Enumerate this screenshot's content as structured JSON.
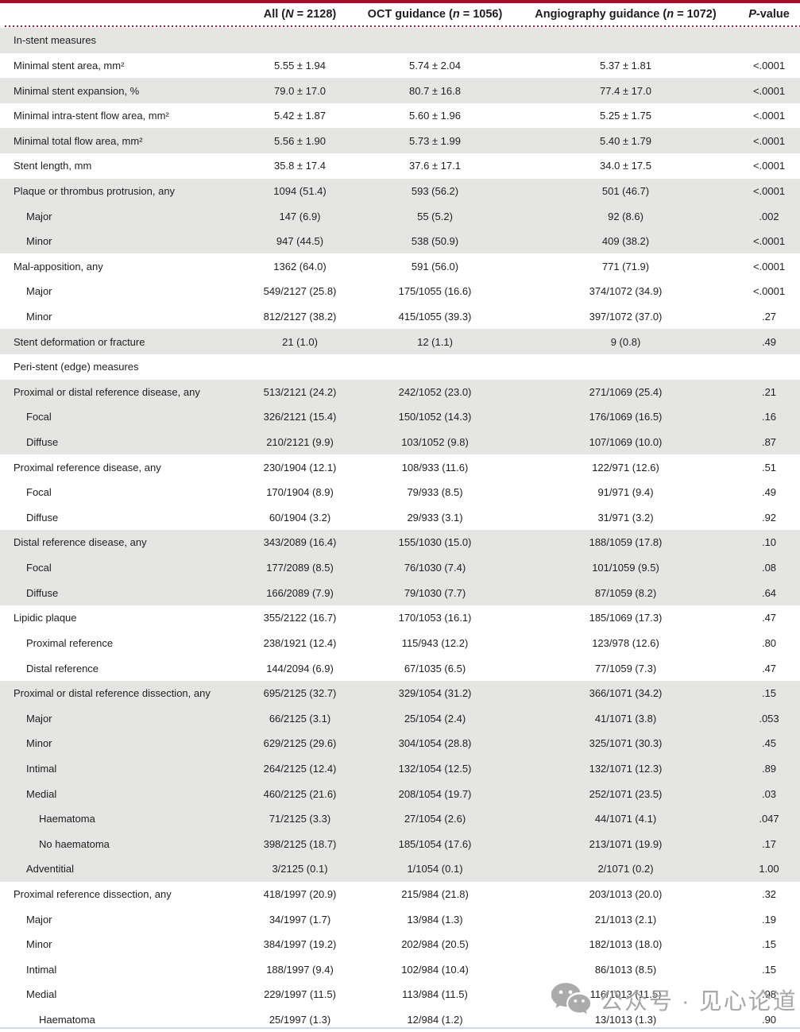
{
  "table": {
    "header": {
      "all": {
        "pre": "All (",
        "it": "N",
        "post": " = 2128)"
      },
      "oct": {
        "pre": "OCT guidance (",
        "it": "n",
        "post": " = 1056)"
      },
      "angio": {
        "pre": "Angiography guidance (",
        "it": "n",
        "post": " = 1072)"
      },
      "p": {
        "pre": "",
        "it": "P",
        "post": "-value"
      }
    },
    "rows": [
      {
        "label": "In-stent measures",
        "section": true,
        "indent": 0,
        "shaded": true,
        "values": [
          "",
          "",
          "",
          ""
        ]
      },
      {
        "label": "Minimal stent area, mm²",
        "indent": 0,
        "shaded": false,
        "values": [
          "5.55 ± 1.94",
          "5.74 ± 2.04",
          "5.37 ± 1.81",
          "<.0001"
        ]
      },
      {
        "label": "Minimal stent expansion, %",
        "indent": 0,
        "shaded": true,
        "values": [
          "79.0 ± 17.0",
          "80.7 ± 16.8",
          "77.4 ± 17.0",
          "<.0001"
        ]
      },
      {
        "label": "Minimal intra-stent flow area, mm²",
        "indent": 0,
        "shaded": false,
        "values": [
          "5.42 ± 1.87",
          "5.60 ± 1.96",
          "5.25 ± 1.75",
          "<.0001"
        ]
      },
      {
        "label": "Minimal total flow area, mm²",
        "indent": 0,
        "shaded": true,
        "values": [
          "5.56 ± 1.90",
          "5.73 ± 1.99",
          "5.40 ± 1.79",
          "<.0001"
        ]
      },
      {
        "label": "Stent length, mm",
        "indent": 0,
        "shaded": false,
        "values": [
          "35.8 ± 17.4",
          "37.6 ± 17.1",
          "34.0 ± 17.5",
          "<.0001"
        ]
      },
      {
        "label": "Plaque or thrombus protrusion, any",
        "indent": 0,
        "shaded": true,
        "values": [
          "1094 (51.4)",
          "593 (56.2)",
          "501 (46.7)",
          "<.0001"
        ]
      },
      {
        "label": "Major",
        "indent": 1,
        "shaded": true,
        "values": [
          "147 (6.9)",
          "55 (5.2)",
          "92 (8.6)",
          ".002"
        ]
      },
      {
        "label": "Minor",
        "indent": 1,
        "shaded": true,
        "values": [
          "947 (44.5)",
          "538 (50.9)",
          "409 (38.2)",
          "<.0001"
        ]
      },
      {
        "label": "Mal-apposition, any",
        "indent": 0,
        "shaded": false,
        "values": [
          "1362 (64.0)",
          "591 (56.0)",
          "771 (71.9)",
          "<.0001"
        ]
      },
      {
        "label": "Major",
        "indent": 1,
        "shaded": false,
        "values": [
          "549/2127 (25.8)",
          "175/1055 (16.6)",
          "374/1072 (34.9)",
          "<.0001"
        ]
      },
      {
        "label": "Minor",
        "indent": 1,
        "shaded": false,
        "values": [
          "812/2127 (38.2)",
          "415/1055 (39.3)",
          "397/1072 (37.0)",
          ".27"
        ]
      },
      {
        "label": "Stent deformation or fracture",
        "indent": 0,
        "shaded": true,
        "values": [
          "21 (1.0)",
          "12 (1.1)",
          "9 (0.8)",
          ".49"
        ]
      },
      {
        "label": "Peri-stent (edge) measures",
        "section": true,
        "indent": 0,
        "shaded": false,
        "values": [
          "",
          "",
          "",
          ""
        ]
      },
      {
        "label": "Proximal or distal reference disease, any",
        "indent": 0,
        "shaded": true,
        "values": [
          "513/2121 (24.2)",
          "242/1052 (23.0)",
          "271/1069 (25.4)",
          ".21"
        ]
      },
      {
        "label": "Focal",
        "indent": 1,
        "shaded": true,
        "values": [
          "326/2121 (15.4)",
          "150/1052 (14.3)",
          "176/1069 (16.5)",
          ".16"
        ]
      },
      {
        "label": "Diffuse",
        "indent": 1,
        "shaded": true,
        "values": [
          "210/2121 (9.9)",
          "103/1052 (9.8)",
          "107/1069 (10.0)",
          ".87"
        ]
      },
      {
        "label": "Proximal reference disease, any",
        "indent": 0,
        "shaded": false,
        "values": [
          "230/1904 (12.1)",
          "108/933 (11.6)",
          "122/971 (12.6)",
          ".51"
        ]
      },
      {
        "label": "Focal",
        "indent": 1,
        "shaded": false,
        "values": [
          "170/1904 (8.9)",
          "79/933 (8.5)",
          "91/971 (9.4)",
          ".49"
        ]
      },
      {
        "label": "Diffuse",
        "indent": 1,
        "shaded": false,
        "values": [
          "60/1904 (3.2)",
          "29/933 (3.1)",
          "31/971 (3.2)",
          ".92"
        ]
      },
      {
        "label": "Distal reference disease, any",
        "indent": 0,
        "shaded": true,
        "values": [
          "343/2089 (16.4)",
          "155/1030 (15.0)",
          "188/1059 (17.8)",
          ".10"
        ]
      },
      {
        "label": "Focal",
        "indent": 1,
        "shaded": true,
        "values": [
          "177/2089 (8.5)",
          "76/1030 (7.4)",
          "101/1059 (9.5)",
          ".08"
        ]
      },
      {
        "label": "Diffuse",
        "indent": 1,
        "shaded": true,
        "values": [
          "166/2089 (7.9)",
          "79/1030 (7.7)",
          "87/1059 (8.2)",
          ".64"
        ]
      },
      {
        "label": "Lipidic plaque",
        "indent": 0,
        "shaded": false,
        "values": [
          "355/2122 (16.7)",
          "170/1053 (16.1)",
          "185/1069 (17.3)",
          ".47"
        ]
      },
      {
        "label": "Proximal reference",
        "indent": 1,
        "shaded": false,
        "values": [
          "238/1921 (12.4)",
          "115/943 (12.2)",
          "123/978 (12.6)",
          ".80"
        ]
      },
      {
        "label": "Distal reference",
        "indent": 1,
        "shaded": false,
        "values": [
          "144/2094 (6.9)",
          "67/1035 (6.5)",
          "77/1059 (7.3)",
          ".47"
        ]
      },
      {
        "label": "Proximal or distal reference dissection, any",
        "indent": 0,
        "shaded": true,
        "values": [
          "695/2125 (32.7)",
          "329/1054 (31.2)",
          "366/1071 (34.2)",
          ".15"
        ]
      },
      {
        "label": "Major",
        "indent": 1,
        "shaded": true,
        "values": [
          "66/2125 (3.1)",
          "25/1054 (2.4)",
          "41/1071 (3.8)",
          ".053"
        ]
      },
      {
        "label": "Minor",
        "indent": 1,
        "shaded": true,
        "values": [
          "629/2125 (29.6)",
          "304/1054 (28.8)",
          "325/1071 (30.3)",
          ".45"
        ]
      },
      {
        "label": "Intimal",
        "indent": 1,
        "shaded": true,
        "values": [
          "264/2125 (12.4)",
          "132/1054 (12.5)",
          "132/1071 (12.3)",
          ".89"
        ]
      },
      {
        "label": "Medial",
        "indent": 1,
        "shaded": true,
        "values": [
          "460/2125 (21.6)",
          "208/1054 (19.7)",
          "252/1071 (23.5)",
          ".03"
        ]
      },
      {
        "label": "Haematoma",
        "indent": 2,
        "shaded": true,
        "values": [
          "71/2125 (3.3)",
          "27/1054 (2.6)",
          "44/1071 (4.1)",
          ".047"
        ]
      },
      {
        "label": "No haematoma",
        "indent": 2,
        "shaded": true,
        "values": [
          "398/2125 (18.7)",
          "185/1054 (17.6)",
          "213/1071 (19.9)",
          ".17"
        ]
      },
      {
        "label": "Adventitial",
        "indent": 1,
        "shaded": true,
        "values": [
          "3/2125 (0.1)",
          "1/1054 (0.1)",
          "2/1071 (0.2)",
          "1.00"
        ]
      },
      {
        "label": "Proximal reference dissection, any",
        "indent": 0,
        "shaded": false,
        "values": [
          "418/1997 (20.9)",
          "215/984 (21.8)",
          "203/1013 (20.0)",
          ".32"
        ]
      },
      {
        "label": "Major",
        "indent": 1,
        "shaded": false,
        "values": [
          "34/1997 (1.7)",
          "13/984 (1.3)",
          "21/1013 (2.1)",
          ".19"
        ]
      },
      {
        "label": "Minor",
        "indent": 1,
        "shaded": false,
        "values": [
          "384/1997 (19.2)",
          "202/984 (20.5)",
          "182/1013 (18.0)",
          ".15"
        ]
      },
      {
        "label": "Intimal",
        "indent": 1,
        "shaded": false,
        "values": [
          "188/1997 (9.4)",
          "102/984 (10.4)",
          "86/1013 (8.5)",
          ".15"
        ]
      },
      {
        "label": "Medial",
        "indent": 1,
        "shaded": false,
        "values": [
          "229/1997 (11.5)",
          "113/984 (11.5)",
          "116/1013 (11.5)",
          ".98"
        ]
      },
      {
        "label": "Haematoma",
        "indent": 2,
        "shaded": false,
        "values": [
          "25/1997 (1.3)",
          "12/984 (1.2)",
          "13/1013 (1.3)",
          ".90"
        ]
      }
    ]
  },
  "watermark": {
    "text": "公众号 · 见心论道",
    "icon": "wechat-icon"
  },
  "colors": {
    "accent_red": "#9e1129",
    "row_shade": "#e5e6e4",
    "watermark_gray": "#989898",
    "bottom_line": "#ccd8e8"
  }
}
